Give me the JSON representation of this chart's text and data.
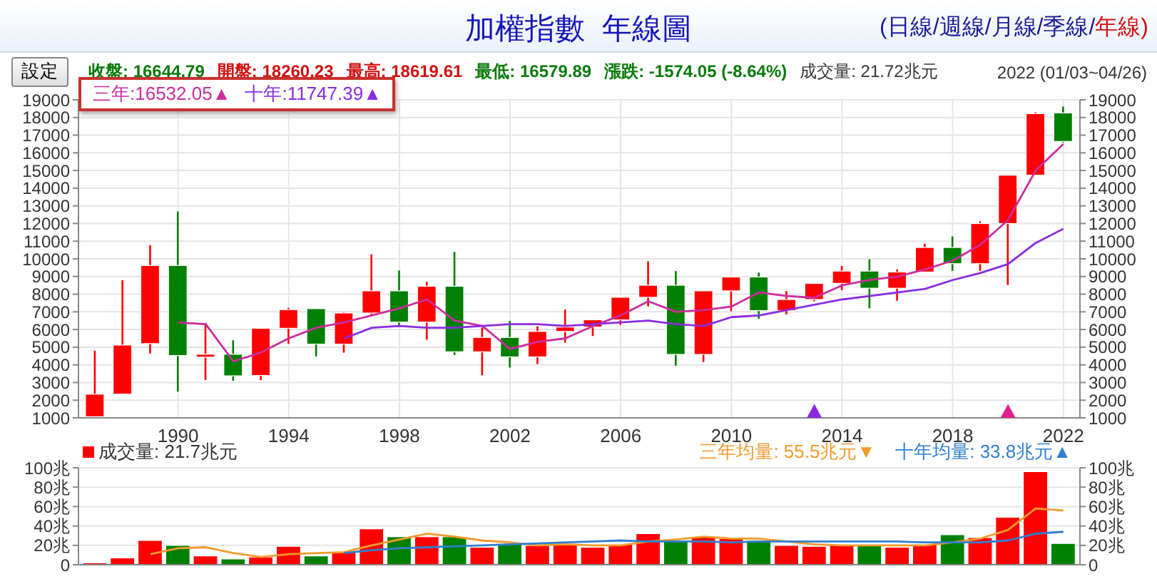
{
  "chart_data": [
    {
      "type": "candlestick",
      "title": "加權指數  年線圖",
      "subtitle": "(日線/週線/月線/季線/年線)",
      "annotations": [
        "設定",
        "收盤: 16644.79",
        "開盤: 18260.23",
        "最高: 18619.61",
        "最低: 16579.89",
        "漲跌: -1574.05 (-8.64%)",
        "成交量: 21.72兆元",
        "2022 (01/03~04/26)"
      ],
      "x": [
        1987,
        1988,
        1989,
        1990,
        1991,
        1992,
        1993,
        1994,
        1995,
        1996,
        1997,
        1998,
        1999,
        2000,
        2001,
        2002,
        2003,
        2004,
        2005,
        2006,
        2007,
        2008,
        2009,
        2010,
        2011,
        2012,
        2013,
        2014,
        2015,
        2016,
        2017,
        2018,
        2019,
        2020,
        2021,
        2022
      ],
      "ohlc": [
        [
          1063,
          4796,
          1039,
          2339
        ],
        [
          2341,
          8789,
          2341,
          5119
        ],
        [
          5202,
          10773,
          4645,
          9624
        ],
        [
          9624,
          12682,
          2485,
          4530
        ],
        [
          4530,
          6365,
          3142,
          4600
        ],
        [
          4600,
          5391,
          3098,
          3377
        ],
        [
          3400,
          6070,
          3135,
          6070
        ],
        [
          6070,
          7228,
          5194,
          7124
        ],
        [
          7180,
          7180,
          4474,
          5173
        ],
        [
          5173,
          6982,
          4690,
          6933
        ],
        [
          6933,
          10256,
          6820,
          8187
        ],
        [
          8187,
          9337,
          6219,
          6418
        ],
        [
          6418,
          8710,
          5422,
          8448
        ],
        [
          8448,
          10393,
          4555,
          4739
        ],
        [
          4739,
          6104,
          3411,
          5551
        ],
        [
          5551,
          6484,
          3850,
          4452
        ],
        [
          4452,
          6182,
          4044,
          5891
        ],
        [
          5891,
          7135,
          5255,
          6140
        ],
        [
          6140,
          6575,
          5633,
          6548
        ],
        [
          6548,
          7823,
          6257,
          7823
        ],
        [
          7823,
          9859,
          7306,
          8506
        ],
        [
          8506,
          9309,
          3955,
          4591
        ],
        [
          4591,
          8188,
          4164,
          8188
        ],
        [
          8188,
          9000,
          7032,
          8972
        ],
        [
          8972,
          9220,
          6609,
          7072
        ],
        [
          7072,
          8170,
          6857,
          7699
        ],
        [
          7699,
          8623,
          7600,
          8611
        ],
        [
          8611,
          9593,
          8230,
          9307
        ],
        [
          9307,
          9973,
          7203,
          8338
        ],
        [
          8338,
          9400,
          7628,
          9254
        ],
        [
          9254,
          10854,
          9254,
          10643
        ],
        [
          10643,
          11270,
          9319,
          9727
        ],
        [
          9727,
          12125,
          9319,
          11997
        ],
        [
          11997,
          14760,
          8523,
          14732
        ],
        [
          14732,
          18291,
          14720,
          18218
        ],
        [
          18260,
          18620,
          16580,
          16645
        ]
      ],
      "colors": [
        "#ff0000",
        "#ff0000",
        "#ff0000",
        "#008000",
        "#ff0000",
        "#008000",
        "#ff0000",
        "#ff0000",
        "#008000",
        "#ff0000",
        "#ff0000",
        "#008000",
        "#ff0000",
        "#008000",
        "#ff0000",
        "#008000",
        "#ff0000",
        "#ff0000",
        "#ff0000",
        "#ff0000",
        "#ff0000",
        "#008000",
        "#ff0000",
        "#ff0000",
        "#008000",
        "#ff0000",
        "#ff0000",
        "#ff0000",
        "#008000",
        "#ff0000",
        "#ff0000",
        "#008000",
        "#ff0000",
        "#ff0000",
        "#ff0000",
        "#008000"
      ],
      "series": [
        {
          "type": "line",
          "name": "三年:16532.05▲",
          "color": "#cc2d9e",
          "x": [
            1990,
            1991,
            1992,
            1993,
            1994,
            1995,
            1996,
            1997,
            1998,
            1999,
            2000,
            2001,
            2002,
            2003,
            2004,
            2005,
            2006,
            2007,
            2008,
            2009,
            2010,
            2011,
            2012,
            2013,
            2014,
            2015,
            2016,
            2017,
            2018,
            2019,
            2020,
            2021,
            2022
          ],
          "values": [
            6400,
            6300,
            4200,
            4700,
            5500,
            6100,
            6400,
            6800,
            7200,
            7700,
            6500,
            6200,
            4900,
            5300,
            5500,
            6200,
            6800,
            7600,
            7000,
            7100,
            7300,
            8100,
            7900,
            7800,
            8500,
            8800,
            9000,
            9400,
            9900,
            10800,
            12200,
            15000,
            16500
          ]
        },
        {
          "type": "line",
          "name": "十年:11747.39▲",
          "color": "#8a2be2",
          "x": [
            1996,
            1997,
            1998,
            1999,
            2000,
            2001,
            2002,
            2003,
            2004,
            2005,
            2006,
            2007,
            2008,
            2009,
            2010,
            2011,
            2012,
            2013,
            2014,
            2015,
            2016,
            2017,
            2018,
            2019,
            2020,
            2021,
            2022
          ],
          "values": [
            5500,
            6100,
            6200,
            6100,
            6100,
            6200,
            6300,
            6300,
            6200,
            6300,
            6400,
            6500,
            6300,
            6200,
            6700,
            6800,
            7100,
            7400,
            7700,
            7900,
            8100,
            8300,
            8800,
            9200,
            9700,
            10900,
            11700
          ]
        },
        {
          "type": "scatter",
          "color": "#8a2be2",
          "marker": "triangle",
          "x": [
            2013
          ],
          "values": [
            1300
          ]
        },
        {
          "type": "scatter",
          "color": "#e0208c",
          "marker": "triangle",
          "x": [
            2020
          ],
          "values": [
            1300
          ]
        }
      ],
      "xlim": [
        1986.4,
        2022.6
      ],
      "xticks": [
        1990,
        1994,
        1998,
        2002,
        2006,
        2010,
        2014,
        2018,
        2022
      ],
      "ylim": [
        1000,
        19000
      ],
      "yticks": [
        1000,
        2000,
        3000,
        4000,
        5000,
        6000,
        7000,
        8000,
        9000,
        10000,
        11000,
        12000,
        13000,
        14000,
        15000,
        16000,
        17000,
        18000,
        19000
      ],
      "y2lim": [
        1000,
        19000
      ],
      "y2ticks": [
        1000,
        2000,
        3000,
        4000,
        5000,
        6000,
        7000,
        8000,
        9000,
        10000,
        11000,
        12000,
        13000,
        14000,
        15000,
        16000,
        17000,
        18000,
        19000
      ],
      "grid": true,
      "legend": "top left"
    },
    {
      "type": "bar",
      "x": [
        1987,
        1988,
        1989,
        1990,
        1991,
        1992,
        1993,
        1994,
        1995,
        1996,
        1997,
        1998,
        1999,
        2000,
        2001,
        2002,
        2003,
        2004,
        2005,
        2006,
        2007,
        2008,
        2009,
        2010,
        2011,
        2012,
        2013,
        2014,
        2015,
        2016,
        2017,
        2018,
        2019,
        2020,
        2021,
        2022
      ],
      "series": [
        {
          "type": "bar",
          "name": "成交量: 21.7兆元",
          "colors": [
            "#ff0000",
            "#ff0000",
            "#ff0000",
            "#008000",
            "#ff0000",
            "#008000",
            "#ff0000",
            "#ff0000",
            "#008000",
            "#ff0000",
            "#ff0000",
            "#008000",
            "#ff0000",
            "#008000",
            "#ff0000",
            "#008000",
            "#ff0000",
            "#ff0000",
            "#ff0000",
            "#ff0000",
            "#ff0000",
            "#008000",
            "#ff0000",
            "#ff0000",
            "#008000",
            "#ff0000",
            "#ff0000",
            "#ff0000",
            "#008000",
            "#ff0000",
            "#ff0000",
            "#008000",
            "#ff0000",
            "#ff0000",
            "#ff0000",
            "#008000"
          ],
          "values": [
            2,
            7,
            25,
            20,
            9,
            6,
            8,
            19,
            9,
            13,
            37,
            29,
            29,
            29,
            18,
            22,
            20,
            22,
            18,
            21,
            32,
            25,
            29,
            27,
            25,
            20,
            19,
            21,
            20,
            18,
            21,
            31,
            28,
            49,
            96,
            22
          ]
        },
        {
          "type": "line",
          "name": "三年均量: 55.5兆元▼",
          "color": "#f39a2c",
          "x": [
            1989,
            1990,
            1991,
            1992,
            1993,
            1994,
            1995,
            1996,
            1997,
            1998,
            1999,
            2000,
            2001,
            2002,
            2003,
            2004,
            2005,
            2006,
            2007,
            2008,
            2009,
            2010,
            2011,
            2012,
            2013,
            2014,
            2015,
            2016,
            2017,
            2018,
            2019,
            2020,
            2021,
            2022
          ],
          "values": [
            11,
            17,
            18,
            12,
            8,
            11,
            12,
            13,
            20,
            26,
            32,
            29,
            25,
            23,
            20,
            21,
            20,
            20,
            24,
            26,
            29,
            27,
            27,
            24,
            21,
            20,
            20,
            20,
            20,
            23,
            27,
            36,
            58,
            56
          ]
        },
        {
          "type": "line",
          "name": "十年均量: 33.8兆元▲",
          "color": "#2f7fd0",
          "x": [
            1996,
            1997,
            1998,
            1999,
            2000,
            2001,
            2002,
            2003,
            2004,
            2005,
            2006,
            2007,
            2008,
            2009,
            2010,
            2011,
            2012,
            2013,
            2014,
            2015,
            2016,
            2017,
            2018,
            2019,
            2020,
            2021,
            2022
          ],
          "values": [
            12,
            15,
            17,
            18,
            19,
            20,
            21,
            22,
            23,
            24,
            25,
            24,
            24,
            24,
            23,
            24,
            24,
            24,
            24,
            24,
            24,
            23,
            23,
            23,
            25,
            32,
            34
          ]
        }
      ],
      "xlim": [
        1986.4,
        2022.6
      ],
      "xticks": [
        1990,
        1994,
        1998,
        2002,
        2006,
        2010,
        2014,
        2018,
        2022
      ],
      "ylim": [
        0,
        100
      ],
      "yticks": [
        0,
        {
          "value": 20,
          "label": "20兆"
        },
        {
          "value": 40,
          "label": "40兆"
        },
        {
          "value": 60,
          "label": "60兆"
        },
        {
          "value": 80,
          "label": "80兆"
        },
        {
          "value": 100,
          "label": "100兆"
        }
      ],
      "y2lim": [
        0,
        100
      ],
      "y2ticks": [
        0,
        {
          "value": 20,
          "label": "20兆"
        },
        {
          "value": 40,
          "label": "40兆"
        },
        {
          "value": 60,
          "label": "60兆"
        },
        {
          "value": 80,
          "label": "80兆"
        },
        {
          "value": 100,
          "label": "100兆"
        }
      ],
      "grid": true,
      "legend": "top",
      "tick_labels": "y"
    }
  ]
}
